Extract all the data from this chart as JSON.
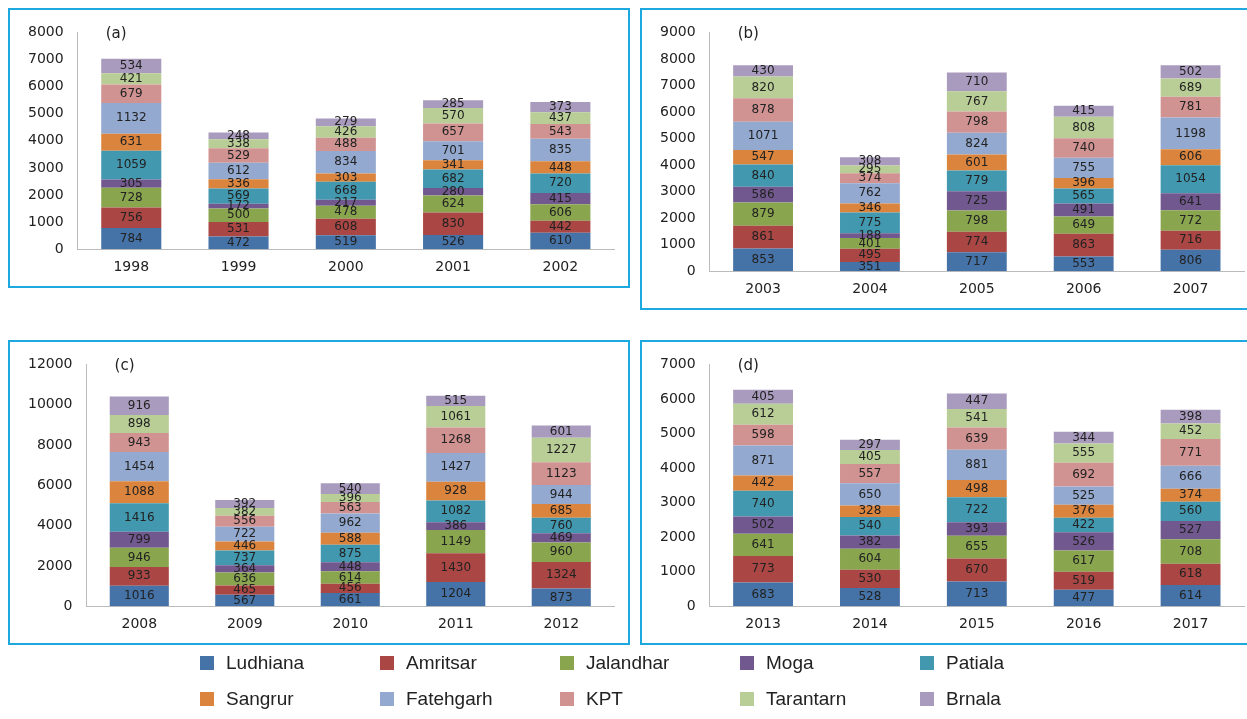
{
  "chart_data": [
    {
      "type": "bar",
      "title": "(a)",
      "categories": [
        "1998",
        "1999",
        "2000",
        "2001",
        "2002"
      ],
      "stacked": true,
      "data_labels": true,
      "grid": false,
      "legend": "bottom",
      "ylim": [
        0,
        8000
      ],
      "yticks": [
        0,
        1000,
        2000,
        3000,
        4000,
        5000,
        6000,
        7000,
        8000
      ],
      "series": [
        {
          "name": "Ludhiana",
          "color": "#4572a7",
          "values": [
            784,
            472,
            519,
            526,
            610
          ]
        },
        {
          "name": "Amritsar",
          "color": "#aa4643",
          "values": [
            756,
            531,
            608,
            830,
            442
          ]
        },
        {
          "name": "Jalandhar",
          "color": "#89a54e",
          "values": [
            728,
            500,
            478,
            624,
            606
          ]
        },
        {
          "name": "Moga",
          "color": "#71588f",
          "values": [
            305,
            172,
            217,
            280,
            415
          ]
        },
        {
          "name": "Patiala",
          "color": "#4198af",
          "values": [
            1059,
            569,
            668,
            682,
            720
          ]
        },
        {
          "name": "Sangrur",
          "color": "#db843d",
          "values": [
            631,
            336,
            303,
            341,
            448
          ]
        },
        {
          "name": "Fatehgarh",
          "color": "#93a9cf",
          "values": [
            1132,
            612,
            834,
            701,
            835
          ]
        },
        {
          "name": "KPT",
          "color": "#d19392",
          "values": [
            679,
            529,
            488,
            657,
            543
          ]
        },
        {
          "name": "Tarantarn",
          "color": "#b9cd96",
          "values": [
            421,
            338,
            426,
            570,
            437
          ]
        },
        {
          "name": "Brnala",
          "color": "#a99bbd",
          "values": [
            534,
            248,
            279,
            285,
            373
          ]
        }
      ]
    },
    {
      "type": "bar",
      "title": "(b)",
      "categories": [
        "2003",
        "2004",
        "2005",
        "2006",
        "2007"
      ],
      "stacked": true,
      "data_labels": true,
      "grid": false,
      "ylim": [
        0,
        9000
      ],
      "yticks": [
        0,
        1000,
        2000,
        3000,
        4000,
        5000,
        6000,
        7000,
        8000,
        9000
      ],
      "series": [
        {
          "color": "#4572a7",
          "values": [
            853,
            351,
            717,
            553,
            806
          ]
        },
        {
          "color": "#aa4643",
          "values": [
            861,
            495,
            774,
            863,
            716
          ]
        },
        {
          "color": "#89a54e",
          "values": [
            879,
            401,
            798,
            649,
            772
          ]
        },
        {
          "color": "#71588f",
          "values": [
            586,
            188,
            725,
            491,
            641
          ]
        },
        {
          "color": "#4198af",
          "values": [
            840,
            775,
            779,
            565,
            1054
          ]
        },
        {
          "color": "#db843d",
          "values": [
            547,
            346,
            601,
            396,
            606
          ]
        },
        {
          "color": "#93a9cf",
          "values": [
            1071,
            762,
            824,
            755,
            1198
          ]
        },
        {
          "color": "#d19392",
          "values": [
            878,
            374,
            798,
            740,
            781
          ]
        },
        {
          "color": "#b9cd96",
          "values": [
            820,
            295,
            767,
            808,
            689
          ]
        },
        {
          "color": "#a99bbd",
          "values": [
            430,
            308,
            710,
            415,
            502
          ]
        }
      ]
    },
    {
      "type": "bar",
      "title": "(c)",
      "categories": [
        "2008",
        "2009",
        "2010",
        "2011",
        "2012"
      ],
      "stacked": true,
      "data_labels": true,
      "grid": false,
      "ylim": [
        0,
        12000
      ],
      "yticks": [
        0,
        2000,
        4000,
        6000,
        8000,
        10000,
        12000
      ],
      "series": [
        {
          "color": "#4572a7",
          "values": [
            1016,
            567,
            661,
            1204,
            873
          ]
        },
        {
          "color": "#aa4643",
          "values": [
            933,
            465,
            456,
            1430,
            1324
          ]
        },
        {
          "color": "#89a54e",
          "values": [
            946,
            636,
            614,
            1149,
            960
          ]
        },
        {
          "color": "#71588f",
          "values": [
            799,
            364,
            448,
            386,
            469
          ]
        },
        {
          "color": "#4198af",
          "values": [
            1416,
            737,
            875,
            1082,
            760
          ]
        },
        {
          "color": "#db843d",
          "values": [
            1088,
            446,
            588,
            928,
            685
          ]
        },
        {
          "color": "#93a9cf",
          "values": [
            1454,
            722,
            962,
            1427,
            944
          ]
        },
        {
          "color": "#d19392",
          "values": [
            943,
            556,
            563,
            1268,
            1123
          ]
        },
        {
          "color": "#b9cd96",
          "values": [
            898,
            382,
            396,
            1061,
            1227
          ]
        },
        {
          "color": "#a99bbd",
          "values": [
            916,
            392,
            540,
            515,
            601
          ]
        }
      ]
    },
    {
      "type": "bar",
      "title": "(d)",
      "categories": [
        "2013",
        "2014",
        "2015",
        "2016",
        "2017"
      ],
      "stacked": true,
      "data_labels": true,
      "grid": false,
      "ylim": [
        0,
        7000
      ],
      "yticks": [
        0,
        1000,
        2000,
        3000,
        4000,
        5000,
        6000,
        7000
      ],
      "series": [
        {
          "color": "#4572a7",
          "values": [
            683,
            528,
            713,
            477,
            614
          ]
        },
        {
          "color": "#aa4643",
          "values": [
            773,
            530,
            670,
            519,
            618
          ]
        },
        {
          "color": "#89a54e",
          "values": [
            641,
            604,
            655,
            617,
            708
          ]
        },
        {
          "color": "#71588f",
          "values": [
            502,
            382,
            393,
            526,
            527
          ]
        },
        {
          "color": "#4198af",
          "values": [
            740,
            540,
            722,
            422,
            560
          ]
        },
        {
          "color": "#db843d",
          "values": [
            442,
            328,
            498,
            376,
            374
          ]
        },
        {
          "color": "#93a9cf",
          "values": [
            871,
            650,
            881,
            525,
            666
          ]
        },
        {
          "color": "#d19392",
          "values": [
            598,
            557,
            639,
            692,
            771
          ]
        },
        {
          "color": "#b9cd96",
          "values": [
            612,
            405,
            541,
            555,
            452
          ]
        },
        {
          "color": "#a99bbd",
          "values": [
            405,
            297,
            447,
            344,
            398
          ]
        }
      ]
    }
  ]
}
